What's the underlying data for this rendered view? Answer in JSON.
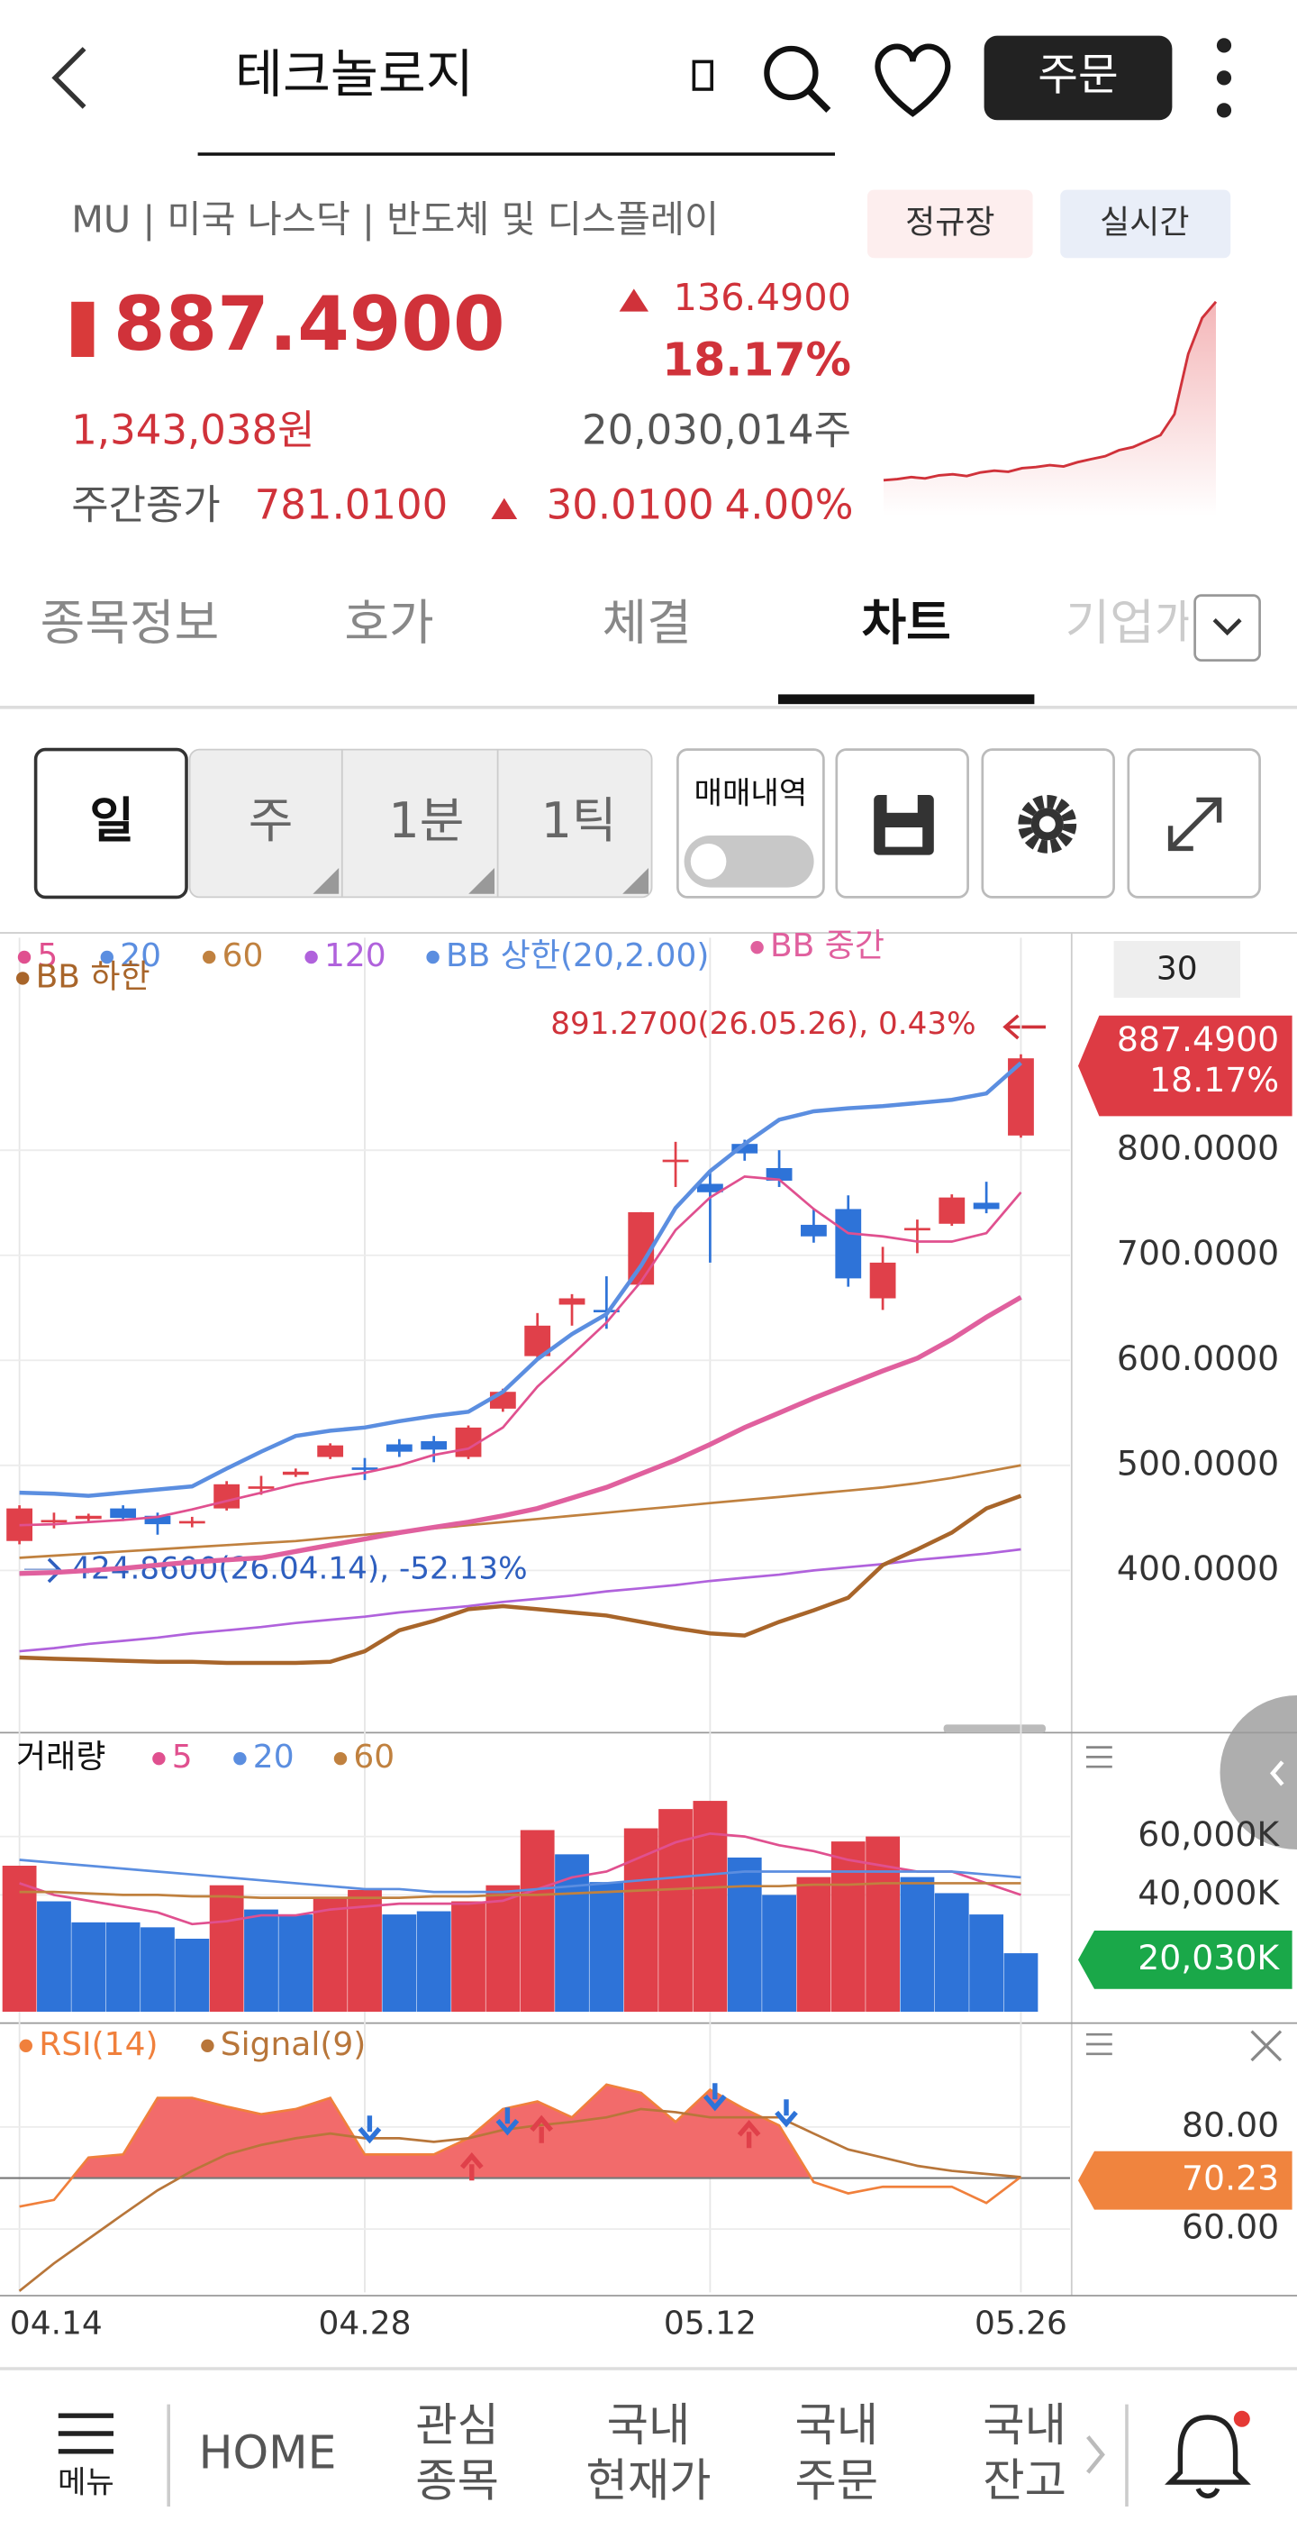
{
  "header": {
    "title": "테크놀로지",
    "order_button": "주문"
  },
  "stock": {
    "meta": "MU | 미국 나스닥 | 반도체 및 디스플레이",
    "badges": [
      "정규장",
      "실시간"
    ],
    "price": "887.4900",
    "change": "136.4900",
    "change_pct": "18.17%",
    "krw": "1,343,038원",
    "volume": "20,030,014주",
    "weekly_label": "주간종가",
    "weekly_price": "781.0100",
    "weekly_change": "30.0100",
    "weekly_pct": "4.00%",
    "sparkline": [
      590,
      592,
      595,
      593,
      598,
      600,
      597,
      603,
      606,
      604,
      610,
      612,
      615,
      613,
      620,
      625,
      630,
      640,
      645,
      655,
      665,
      700,
      800,
      860,
      887
    ]
  },
  "tabs": [
    "종목정보",
    "호가",
    "체결",
    "차트",
    "기업개요"
  ],
  "toolbar": {
    "periods": [
      "일",
      "주",
      "1분",
      "1틱"
    ],
    "trade_history": "매매내역",
    "zoom": 30
  },
  "chart_data": [
    {
      "type": "candlestick",
      "categories": [
        "04.14",
        null,
        null,
        null,
        null,
        null,
        null,
        null,
        null,
        null,
        "04.28",
        null,
        null,
        null,
        null,
        null,
        null,
        null,
        null,
        null,
        "05.12",
        null,
        null,
        null,
        null,
        null,
        null,
        null,
        null,
        "05.26"
      ],
      "open": [
        428,
        447,
        449,
        459,
        452,
        446,
        459,
        478,
        491,
        508,
        498,
        520,
        523,
        508,
        554,
        604,
        653,
        648,
        672,
        790,
        768,
        806,
        783,
        729,
        744,
        659,
        725,
        730,
        750,
        814
      ],
      "high": [
        462,
        455,
        454,
        462,
        455,
        451,
        485,
        490,
        497,
        521,
        507,
        525,
        528,
        538,
        573,
        645,
        663,
        680,
        741,
        808,
        780,
        810,
        800,
        744,
        757,
        708,
        734,
        758,
        770,
        891.27
      ],
      "low": [
        424.86,
        440,
        447,
        447,
        434,
        441,
        457,
        472,
        489,
        506,
        486,
        508,
        503,
        506,
        551,
        600,
        633,
        630,
        672,
        765,
        693,
        790,
        765,
        712,
        670,
        648,
        702,
        728,
        740,
        812
      ],
      "close": [
        459,
        448,
        452,
        450,
        444,
        447,
        482,
        480,
        494,
        519,
        497,
        513,
        515,
        536,
        570,
        633,
        659,
        647,
        741,
        791,
        760,
        797,
        771,
        718,
        678,
        693,
        726,
        755,
        744,
        887.49
      ],
      "up_color": "#e0404a",
      "down_color": "#2e73d8",
      "overlays": [
        {
          "name": "5",
          "color": "#e0508f",
          "values": [
            443,
            444,
            446,
            448,
            451,
            458,
            466,
            474,
            482,
            488,
            493,
            500,
            510,
            516,
            536,
            575,
            605,
            636,
            675,
            724,
            755,
            775,
            772,
            744,
            721,
            718,
            713,
            713,
            721,
            760
          ]
        },
        {
          "name": "20",
          "color": "#5b8ee0",
          "values": [
            397,
            398,
            400,
            402,
            405,
            408,
            410,
            412,
            418,
            424,
            430,
            436,
            441,
            446,
            452,
            459,
            469,
            479,
            492,
            505,
            520,
            536,
            550,
            564,
            577,
            590,
            602,
            620,
            641,
            660
          ]
        },
        {
          "name": "60",
          "color": "#c0813f",
          "values": [
            412,
            414,
            416,
            418,
            420,
            422,
            424,
            426,
            428,
            431,
            434,
            437,
            440,
            443,
            446,
            449,
            452,
            455,
            458,
            461,
            464,
            467,
            470,
            473,
            476,
            479,
            483,
            488,
            494,
            500
          ]
        },
        {
          "name": "120",
          "color": "#b062dc",
          "values": [
            323,
            326,
            330,
            333,
            336,
            340,
            343,
            346,
            350,
            353,
            356,
            360,
            363,
            366,
            370,
            373,
            376,
            380,
            383,
            386,
            390,
            393,
            396,
            400,
            403,
            406,
            410,
            413,
            416,
            420
          ]
        },
        {
          "name": "BB 상한(20,2.00)",
          "color": "#5b8ee0",
          "width": 2.5,
          "values": [
            474,
            473,
            471,
            474,
            477,
            480,
            497,
            513,
            528,
            533,
            536,
            542,
            547,
            551,
            570,
            601,
            625,
            644,
            690,
            745,
            780,
            806,
            829,
            837,
            840,
            842,
            845,
            848,
            854,
            883
          ]
        },
        {
          "name": "BB 중간",
          "color": "#e0609e",
          "width": 3,
          "values": [
            397,
            398,
            400,
            402,
            405,
            408,
            410,
            412,
            418,
            424,
            430,
            436,
            441,
            446,
            452,
            459,
            469,
            479,
            492,
            505,
            520,
            536,
            550,
            564,
            577,
            590,
            602,
            620,
            641,
            660
          ]
        },
        {
          "name": "BB 하한",
          "color": "#a8652a",
          "width": 2.5,
          "values": [
            317,
            316,
            315,
            314,
            313,
            313,
            312,
            312,
            312,
            313,
            323,
            343,
            352,
            363,
            366,
            363,
            360,
            357,
            351,
            345,
            340,
            338,
            351,
            362,
            374,
            405,
            420,
            436,
            459,
            471
          ]
        }
      ],
      "ylim": [
        254.8,
        1002.3
      ],
      "yticks": [
        {
          "value": 400,
          "label": "400.0000"
        },
        {
          "value": 500,
          "label": "500.0000"
        },
        {
          "value": 600,
          "label": "600.0000"
        },
        {
          "value": 700,
          "label": "700.0000"
        },
        {
          "value": 800,
          "label": "800.0000"
        }
      ],
      "grid": true,
      "annotations": [
        "891.2700(26.05.26), 0.43%",
        "424.8600(26.04.14), -52.13%"
      ],
      "tag": [
        "887.4900",
        "18.17%"
      ],
      "tag_color": "#dd3b44"
    },
    {
      "type": "bar",
      "title": "거래량",
      "values": [
        50000,
        37800,
        30600,
        30600,
        28900,
        25000,
        43300,
        35000,
        33300,
        38900,
        41700,
        33300,
        34400,
        37800,
        43300,
        62200,
        53900,
        44400,
        62800,
        69400,
        72200,
        52800,
        40000,
        46100,
        58300,
        60000,
        46100,
        40600,
        33300,
        20030
      ],
      "bar_colors": [
        "#e0404a",
        "#2e73d8",
        "#2e73d8",
        "#2e73d8",
        "#2e73d8",
        "#2e73d8",
        "#e0404a",
        "#2e73d8",
        "#2e73d8",
        "#e0404a",
        "#e0404a",
        "#2e73d8",
        "#2e73d8",
        "#e0404a",
        "#e0404a",
        "#e0404a",
        "#2e73d8",
        "#2e73d8",
        "#e0404a",
        "#e0404a",
        "#e0404a",
        "#2e73d8",
        "#2e73d8",
        "#e0404a",
        "#e0404a",
        "#e0404a",
        "#2e73d8",
        "#2e73d8",
        "#2e73d8",
        "#2e73d8"
      ],
      "overlays": [
        {
          "name": "5",
          "color": "#e0508f",
          "values": [
            44000,
            40000,
            38000,
            36000,
            34000,
            30000,
            31000,
            33000,
            33000,
            35000,
            36000,
            37000,
            37000,
            37000,
            38000,
            42000,
            46000,
            48000,
            53000,
            58000,
            61000,
            60000,
            57000,
            55000,
            52000,
            50000,
            48000,
            48000,
            44000,
            40000
          ]
        },
        {
          "name": "20",
          "color": "#5b8ee0",
          "values": [
            52000,
            51000,
            50000,
            49000,
            48000,
            47000,
            46000,
            45000,
            44000,
            43000,
            42000,
            42000,
            41000,
            41000,
            41000,
            42000,
            43000,
            44000,
            45000,
            46000,
            47000,
            48000,
            48000,
            48000,
            48000,
            48000,
            48000,
            48000,
            47000,
            46000
          ]
        },
        {
          "name": "60",
          "color": "#c0813f",
          "values": [
            41000,
            41000,
            40500,
            40000,
            40000,
            39500,
            39500,
            39000,
            39000,
            39000,
            39000,
            39000,
            39500,
            39500,
            40000,
            40000,
            40500,
            41000,
            41500,
            42000,
            42500,
            43000,
            43000,
            43500,
            43500,
            44000,
            44000,
            44000,
            44000,
            44000
          ]
        }
      ],
      "ylim": [
        0,
        91667
      ],
      "yticks": [
        {
          "value": 40000,
          "label": "40,000K"
        },
        {
          "value": 60000,
          "label": "60,000K"
        }
      ],
      "grid": true,
      "tag": "20,030K",
      "tag_color": "#1aa849"
    },
    {
      "type": "line",
      "series": [
        {
          "name": "RSI(14)",
          "color": "#f0803c",
          "values": [
            64.4,
            65.7,
            74,
            74.6,
            85.7,
            85.7,
            84,
            82.5,
            83.5,
            85.7,
            74.6,
            74.6,
            74.6,
            77.8,
            83.5,
            85,
            81.9,
            88.3,
            86.7,
            81,
            87.3,
            83.5,
            80.3,
            69.2,
            67,
            68.3,
            68.3,
            68.3,
            65.1,
            70.23
          ]
        },
        {
          "name": "Signal(9)",
          "color": "#b8763a",
          "values": [
            47.9,
            53.3,
            58.1,
            62.9,
            67.6,
            71.4,
            74.6,
            76.5,
            77.8,
            78.7,
            77.8,
            77.8,
            77.1,
            77.8,
            79.4,
            80.3,
            81,
            81.9,
            83.5,
            82.9,
            81.9,
            81.9,
            81.9,
            78.7,
            75.6,
            74,
            72.4,
            71.4,
            70.8,
            70.2
          ]
        }
      ],
      "fill_base": 70,
      "fill_color": "#f26b6b",
      "ylim": [
        47.6,
        99.4
      ],
      "yticks": [
        {
          "value": 60,
          "label": "60.00"
        },
        {
          "value": 80,
          "label": "80.00"
        }
      ],
      "grid": true,
      "tag": "70.23",
      "tag_color": "#f0843e"
    }
  ],
  "nav": {
    "menu": "메뉴",
    "home": "HOME",
    "items": [
      [
        "관심",
        "종목"
      ],
      [
        "국내",
        "현재가"
      ],
      [
        "국내",
        "주문"
      ],
      [
        "국내",
        "잔고"
      ]
    ]
  }
}
